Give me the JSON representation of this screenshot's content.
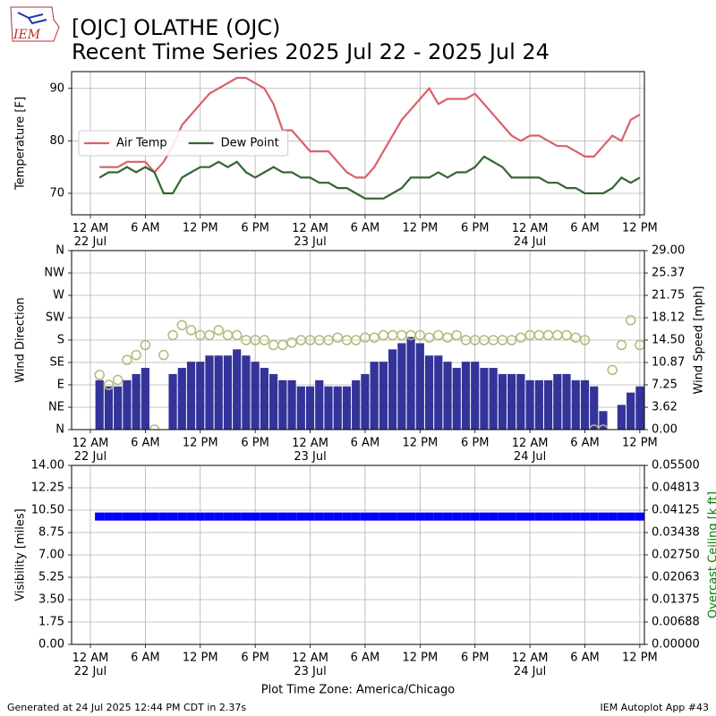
{
  "logo": "IEM",
  "footer": {
    "left": "Generated at 24 Jul 2025 12:44 PM CDT in 2.37s",
    "right": "IEM Autoplot App #43"
  },
  "chart_data": [
    {
      "type": "line",
      "title": "[OJC] OLATHE (OJC)",
      "subtitle": "Recent Time Series 2025 Jul 22 - 2025 Jul 24",
      "ylabel": "Temperature [F]",
      "grid": true,
      "legend": "center left",
      "xlim": [
        "2025-07-21T21:57",
        "2025-07-24T12:30"
      ],
      "xticks": [
        {
          "value": "2025-07-22T00:00",
          "label": "12 AM\n22 Jul"
        },
        {
          "value": "2025-07-22T06:00",
          "label": "6 AM"
        },
        {
          "value": "2025-07-22T12:00",
          "label": "12 PM"
        },
        {
          "value": "2025-07-22T18:00",
          "label": "6 PM"
        },
        {
          "value": "2025-07-23T00:00",
          "label": "12 AM\n23 Jul"
        },
        {
          "value": "2025-07-23T06:00",
          "label": "6 AM"
        },
        {
          "value": "2025-07-23T12:00",
          "label": "12 PM"
        },
        {
          "value": "2025-07-23T18:00",
          "label": "6 PM"
        },
        {
          "value": "2025-07-24T00:00",
          "label": "12 AM\n24 Jul"
        },
        {
          "value": "2025-07-24T06:00",
          "label": "6 AM"
        },
        {
          "value": "2025-07-24T12:00",
          "label": "12 PM"
        }
      ],
      "ylim": [
        65.9,
        93.2
      ],
      "yticks": [
        70,
        80,
        90
      ],
      "x": [
        "2025-07-22T01:00",
        "2025-07-22T02:00",
        "2025-07-22T03:00",
        "2025-07-22T04:00",
        "2025-07-22T05:00",
        "2025-07-22T06:00",
        "2025-07-22T07:00",
        "2025-07-22T08:00",
        "2025-07-22T09:00",
        "2025-07-22T10:00",
        "2025-07-22T11:00",
        "2025-07-22T12:00",
        "2025-07-22T13:00",
        "2025-07-22T14:00",
        "2025-07-22T15:00",
        "2025-07-22T16:00",
        "2025-07-22T17:00",
        "2025-07-22T18:00",
        "2025-07-22T19:00",
        "2025-07-22T20:00",
        "2025-07-22T21:00",
        "2025-07-22T22:00",
        "2025-07-22T23:00",
        "2025-07-23T00:00",
        "2025-07-23T01:00",
        "2025-07-23T02:00",
        "2025-07-23T03:00",
        "2025-07-23T04:00",
        "2025-07-23T05:00",
        "2025-07-23T06:00",
        "2025-07-23T07:00",
        "2025-07-23T08:00",
        "2025-07-23T09:00",
        "2025-07-23T10:00",
        "2025-07-23T11:00",
        "2025-07-23T12:00",
        "2025-07-23T13:00",
        "2025-07-23T14:00",
        "2025-07-23T15:00",
        "2025-07-23T16:00",
        "2025-07-23T17:00",
        "2025-07-23T18:00",
        "2025-07-23T19:00",
        "2025-07-23T20:00",
        "2025-07-23T21:00",
        "2025-07-23T22:00",
        "2025-07-23T23:00",
        "2025-07-24T00:00",
        "2025-07-24T01:00",
        "2025-07-24T02:00",
        "2025-07-24T03:00",
        "2025-07-24T04:00",
        "2025-07-24T05:00",
        "2025-07-24T06:00",
        "2025-07-24T07:00",
        "2025-07-24T08:00",
        "2025-07-24T09:00",
        "2025-07-24T10:00",
        "2025-07-24T11:00",
        "2025-07-24T12:00"
      ],
      "series": [
        {
          "name": "Air Temp",
          "type": "line",
          "color": "#d9606a",
          "values": [
            75,
            75,
            75,
            76,
            76,
            76,
            74,
            76,
            79,
            83,
            85,
            87,
            89,
            90,
            91,
            92,
            92,
            91,
            90,
            87,
            82,
            82,
            80,
            78,
            78,
            78,
            76,
            74,
            73,
            73,
            75,
            78,
            81,
            84,
            86,
            88,
            90,
            87,
            88,
            88,
            88,
            89,
            87,
            85,
            83,
            81,
            80,
            81,
            81,
            80,
            79,
            79,
            78,
            77,
            77,
            79,
            81,
            80,
            84,
            85
          ]
        },
        {
          "name": "Dew Point",
          "type": "line",
          "color": "#336633",
          "values": [
            73,
            74,
            74,
            75,
            74,
            75,
            74,
            70,
            70,
            73,
            74,
            75,
            75,
            76,
            75,
            76,
            74,
            73,
            74,
            75,
            74,
            74,
            73,
            73,
            72,
            72,
            71,
            71,
            70,
            69,
            69,
            69,
            70,
            71,
            73,
            73,
            73,
            74,
            73,
            74,
            74,
            75,
            77,
            76,
            75,
            73,
            73,
            73,
            73,
            72,
            72,
            71,
            71,
            70,
            70,
            70,
            71,
            73,
            72,
            73
          ]
        }
      ]
    },
    {
      "type": "bar",
      "ylabel": "Wind Direction",
      "y2label": "Wind Speed [mph]",
      "grid": true,
      "xlim": [
        "2025-07-21T21:57",
        "2025-07-24T12:30"
      ],
      "xticks": [
        {
          "value": "2025-07-22T00:00",
          "label": "12 AM\n22 Jul"
        },
        {
          "value": "2025-07-22T06:00",
          "label": "6 AM"
        },
        {
          "value": "2025-07-22T12:00",
          "label": "12 PM"
        },
        {
          "value": "2025-07-22T18:00",
          "label": "6 PM"
        },
        {
          "value": "2025-07-23T00:00",
          "label": "12 AM\n23 Jul"
        },
        {
          "value": "2025-07-23T06:00",
          "label": "6 AM"
        },
        {
          "value": "2025-07-23T12:00",
          "label": "12 PM"
        },
        {
          "value": "2025-07-23T18:00",
          "label": "6 PM"
        },
        {
          "value": "2025-07-24T00:00",
          "label": "12 AM\n24 Jul"
        },
        {
          "value": "2025-07-24T06:00",
          "label": "6 AM"
        },
        {
          "value": "2025-07-24T12:00",
          "label": "12 PM"
        }
      ],
      "ylim": [
        0,
        360
      ],
      "yticks": [
        {
          "value": 0,
          "label": "N"
        },
        {
          "value": 45,
          "label": "NE"
        },
        {
          "value": 90,
          "label": "E"
        },
        {
          "value": 135,
          "label": "SE"
        },
        {
          "value": 180,
          "label": "S"
        },
        {
          "value": 225,
          "label": "SW"
        },
        {
          "value": 270,
          "label": "W"
        },
        {
          "value": 315,
          "label": "NW"
        },
        {
          "value": 360,
          "label": "N"
        }
      ],
      "y2lim": [
        0,
        29
      ],
      "y2ticks": [
        {
          "value": 0,
          "label": "0.00"
        },
        3.62,
        7.25,
        10.87,
        {
          "value": 14.5,
          "label": "14.50"
        },
        18.12,
        21.75,
        25.37,
        {
          "value": 29,
          "label": "29.00"
        }
      ],
      "x": [
        "2025-07-22T01:00",
        "2025-07-22T02:00",
        "2025-07-22T03:00",
        "2025-07-22T04:00",
        "2025-07-22T05:00",
        "2025-07-22T06:00",
        "2025-07-22T07:00",
        "2025-07-22T08:00",
        "2025-07-22T09:00",
        "2025-07-22T10:00",
        "2025-07-22T11:00",
        "2025-07-22T12:00",
        "2025-07-22T13:00",
        "2025-07-22T14:00",
        "2025-07-22T15:00",
        "2025-07-22T16:00",
        "2025-07-22T17:00",
        "2025-07-22T18:00",
        "2025-07-22T19:00",
        "2025-07-22T20:00",
        "2025-07-22T21:00",
        "2025-07-22T22:00",
        "2025-07-22T23:00",
        "2025-07-23T00:00",
        "2025-07-23T01:00",
        "2025-07-23T02:00",
        "2025-07-23T03:00",
        "2025-07-23T04:00",
        "2025-07-23T05:00",
        "2025-07-23T06:00",
        "2025-07-23T07:00",
        "2025-07-23T08:00",
        "2025-07-23T09:00",
        "2025-07-23T10:00",
        "2025-07-23T11:00",
        "2025-07-23T12:00",
        "2025-07-23T13:00",
        "2025-07-23T14:00",
        "2025-07-23T15:00",
        "2025-07-23T16:00",
        "2025-07-23T17:00",
        "2025-07-23T18:00",
        "2025-07-23T19:00",
        "2025-07-23T20:00",
        "2025-07-23T21:00",
        "2025-07-23T22:00",
        "2025-07-23T23:00",
        "2025-07-24T00:00",
        "2025-07-24T01:00",
        "2025-07-24T02:00",
        "2025-07-24T03:00",
        "2025-07-24T04:00",
        "2025-07-24T05:00",
        "2025-07-24T06:00",
        "2025-07-24T07:00",
        "2025-07-24T08:00",
        "2025-07-24T09:00",
        "2025-07-24T10:00",
        "2025-07-24T11:00",
        "2025-07-24T12:00"
      ],
      "series": [
        {
          "type": "bar",
          "axis": "y2",
          "color": "#333399",
          "values": [
            8,
            7,
            7,
            8,
            9,
            10,
            0,
            0,
            9,
            10,
            11,
            11,
            12,
            12,
            12,
            13,
            12,
            11,
            10,
            9,
            8,
            8,
            7,
            7,
            8,
            7,
            7,
            7,
            8,
            9,
            11,
            11,
            13,
            14,
            15,
            14,
            12,
            12,
            11,
            10,
            11,
            11,
            10,
            10,
            9,
            9,
            9,
            8,
            8,
            8,
            9,
            9,
            8,
            8,
            7,
            3,
            0,
            4,
            6,
            7
          ]
        },
        {
          "type": "scatter",
          "marker": "circle",
          "color": "#b5b878",
          "values": [
            110,
            90,
            100,
            140,
            150,
            170,
            0,
            150,
            190,
            210,
            200,
            190,
            190,
            200,
            190,
            190,
            180,
            180,
            180,
            170,
            170,
            175,
            180,
            180,
            180,
            180,
            185,
            180,
            180,
            185,
            185,
            190,
            190,
            190,
            190,
            190,
            185,
            190,
            185,
            190,
            180,
            180,
            180,
            180,
            180,
            180,
            185,
            190,
            190,
            190,
            190,
            190,
            185,
            180,
            0,
            0,
            120,
            170,
            220,
            170
          ]
        }
      ]
    },
    {
      "type": "bar",
      "ylabel": "Visibility [miles]",
      "y2label": "Overcast Ceiling [k ft]",
      "y2label_color": "green",
      "xlabel": "Plot Time Zone: America/Chicago",
      "grid": true,
      "xlim": [
        "2025-07-21T21:57",
        "2025-07-24T12:30"
      ],
      "xticks": [
        {
          "value": "2025-07-22T00:00",
          "label": "12 AM\n22 Jul"
        },
        {
          "value": "2025-07-22T06:00",
          "label": "6 AM"
        },
        {
          "value": "2025-07-22T12:00",
          "label": "12 PM"
        },
        {
          "value": "2025-07-22T18:00",
          "label": "6 PM"
        },
        {
          "value": "2025-07-23T00:00",
          "label": "12 AM\n23 Jul"
        },
        {
          "value": "2025-07-23T06:00",
          "label": "6 AM"
        },
        {
          "value": "2025-07-23T12:00",
          "label": "12 PM"
        },
        {
          "value": "2025-07-23T18:00",
          "label": "6 PM"
        },
        {
          "value": "2025-07-24T00:00",
          "label": "12 AM\n24 Jul"
        },
        {
          "value": "2025-07-24T06:00",
          "label": "6 AM"
        },
        {
          "value": "2025-07-24T12:00",
          "label": "12 PM"
        }
      ],
      "ylim": [
        0,
        14
      ],
      "yticks": [
        {
          "value": 0,
          "label": "0.00"
        },
        1.75,
        {
          "value": 3.5,
          "label": "3.50"
        },
        5.25,
        {
          "value": 7,
          "label": "7.00"
        },
        8.75,
        {
          "value": 10.5,
          "label": "10.50"
        },
        12.25,
        {
          "value": 14,
          "label": "14.00"
        }
      ],
      "y2lim": [
        0,
        0.055
      ],
      "y2ticks": [
        {
          "value": 0,
          "label": "0.00000"
        },
        0.00688,
        0.01375,
        0.02063,
        {
          "value": 0.0275,
          "label": "0.02750"
        },
        0.03438,
        0.04125,
        0.04813,
        {
          "value": 0.055,
          "label": "0.05500"
        }
      ],
      "x": [
        "2025-07-22T01:00",
        "2025-07-22T02:00",
        "2025-07-22T03:00",
        "2025-07-22T04:00",
        "2025-07-22T05:00",
        "2025-07-22T06:00",
        "2025-07-22T07:00",
        "2025-07-22T08:00",
        "2025-07-22T09:00",
        "2025-07-22T10:00",
        "2025-07-22T11:00",
        "2025-07-22T12:00",
        "2025-07-22T13:00",
        "2025-07-22T14:00",
        "2025-07-22T15:00",
        "2025-07-22T16:00",
        "2025-07-22T17:00",
        "2025-07-22T18:00",
        "2025-07-22T19:00",
        "2025-07-22T20:00",
        "2025-07-22T21:00",
        "2025-07-22T22:00",
        "2025-07-22T23:00",
        "2025-07-23T00:00",
        "2025-07-23T01:00",
        "2025-07-23T02:00",
        "2025-07-23T03:00",
        "2025-07-23T04:00",
        "2025-07-23T05:00",
        "2025-07-23T06:00",
        "2025-07-23T07:00",
        "2025-07-23T08:00",
        "2025-07-23T09:00",
        "2025-07-23T10:00",
        "2025-07-23T11:00",
        "2025-07-23T12:00",
        "2025-07-23T13:00",
        "2025-07-23T14:00",
        "2025-07-23T15:00",
        "2025-07-23T16:00",
        "2025-07-23T17:00",
        "2025-07-23T18:00",
        "2025-07-23T19:00",
        "2025-07-23T20:00",
        "2025-07-23T21:00",
        "2025-07-23T22:00",
        "2025-07-23T23:00",
        "2025-07-24T00:00",
        "2025-07-24T01:00",
        "2025-07-24T02:00",
        "2025-07-24T03:00",
        "2025-07-24T04:00",
        "2025-07-24T05:00",
        "2025-07-24T06:00",
        "2025-07-24T07:00",
        "2025-07-24T08:00",
        "2025-07-24T09:00",
        "2025-07-24T10:00",
        "2025-07-24T11:00",
        "2025-07-24T12:00"
      ],
      "series": [
        {
          "type": "scatter",
          "marker": "square",
          "color": "#0000ff",
          "values": [
            10,
            10,
            10,
            10,
            10,
            10,
            10,
            10,
            10,
            10,
            10,
            10,
            10,
            10,
            10,
            10,
            10,
            10,
            10,
            10,
            10,
            10,
            10,
            10,
            10,
            10,
            10,
            10,
            10,
            10,
            10,
            10,
            10,
            10,
            10,
            10,
            10,
            10,
            10,
            10,
            10,
            10,
            10,
            10,
            10,
            10,
            10,
            10,
            10,
            10,
            10,
            10,
            10,
            10,
            10,
            10,
            10,
            10,
            10,
            10
          ]
        }
      ]
    }
  ]
}
